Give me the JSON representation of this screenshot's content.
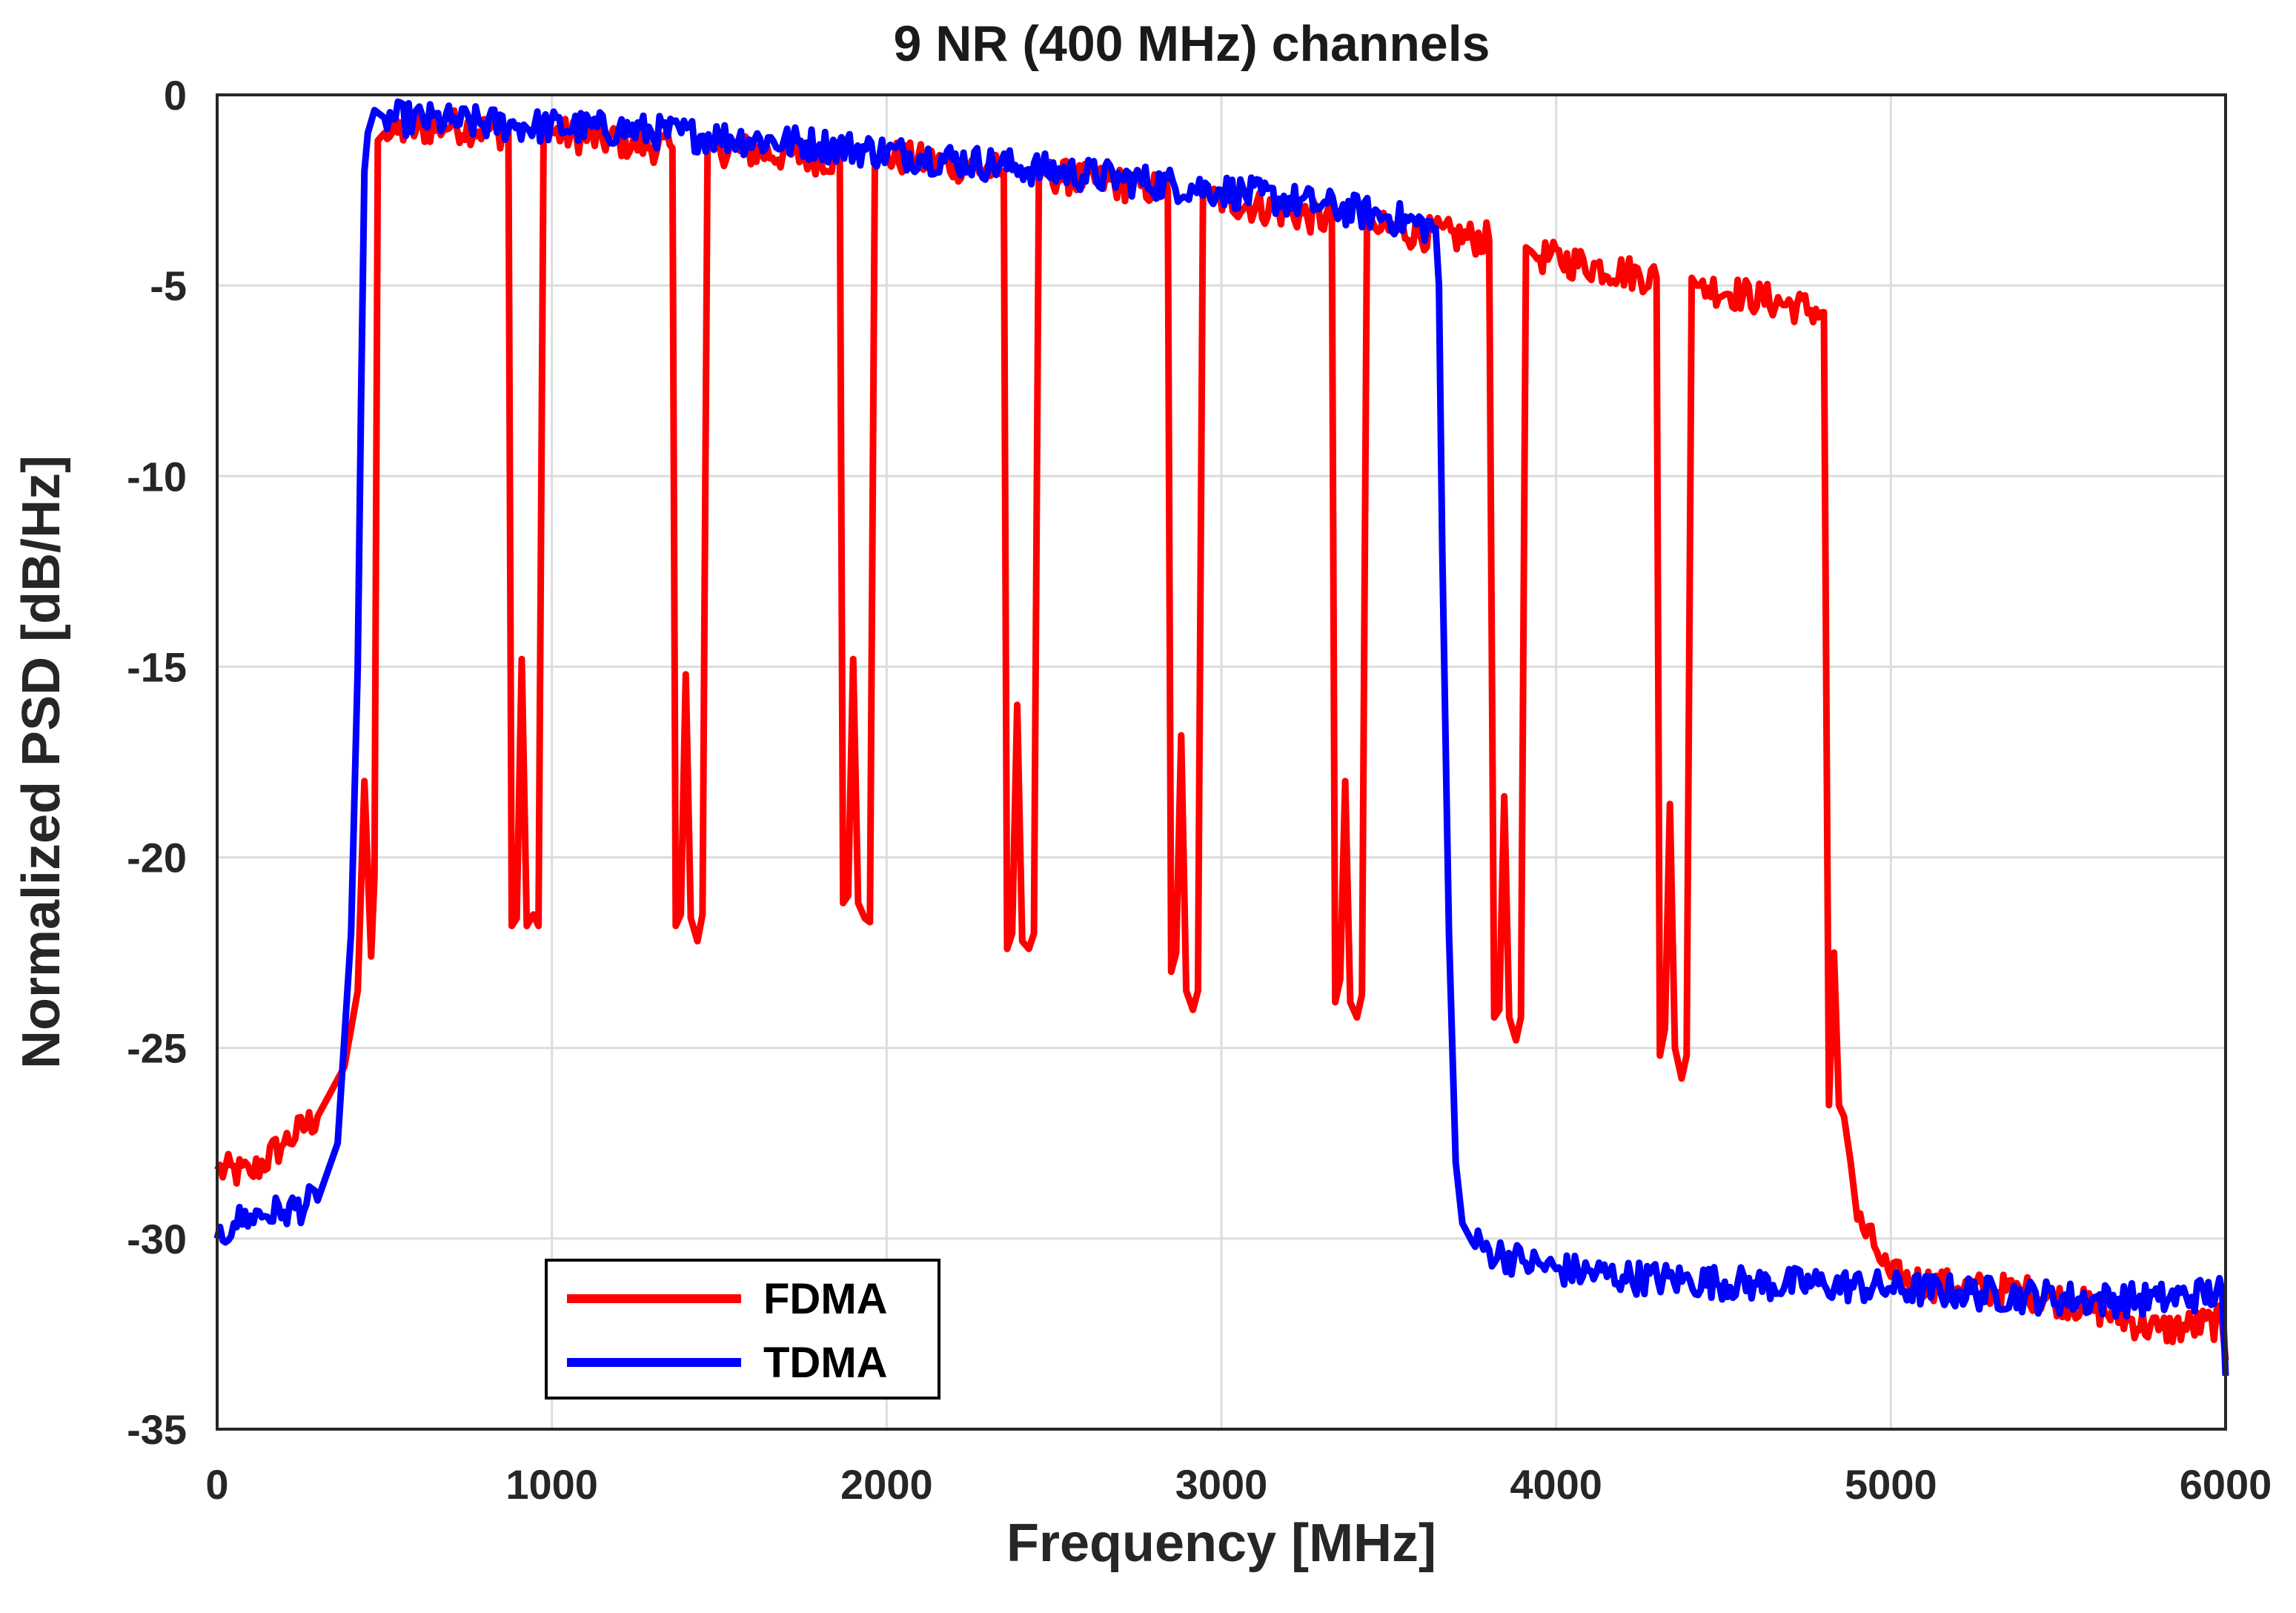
{
  "chart_data": {
    "type": "line",
    "title": "9 NR (400 MHz) channels",
    "xlabel": "Frequency [MHz]",
    "ylabel": "Normalized PSD [dB/Hz]",
    "xlim": [
      0,
      6000
    ],
    "ylim": [
      -35,
      0
    ],
    "xticks": [
      0,
      1000,
      2000,
      3000,
      4000,
      5000,
      6000
    ],
    "xtick_labels": [
      "0",
      "1000",
      "2000",
      "3000",
      "4000",
      "5000",
      "6000"
    ],
    "yticks": [
      0,
      -5,
      -10,
      -15,
      -20,
      -25,
      -30,
      -35
    ],
    "ytick_labels": [
      "0",
      "-5",
      "-10",
      "-15",
      "-20",
      "-25",
      "-30",
      "-35"
    ],
    "grid": true,
    "legend_position": "bottom-left",
    "series": [
      {
        "name": "FDMA",
        "color": "#ff0000",
        "x": [
          0,
          100,
          200,
          300,
          380,
          420,
          440,
          460,
          470,
          480,
          500,
          700,
          870,
          880,
          895,
          910,
          925,
          945,
          960,
          975,
          990,
          1000,
          1360,
          1370,
          1385,
          1400,
          1415,
          1435,
          1450,
          1465,
          1480,
          1490,
          1860,
          1870,
          1885,
          1900,
          1915,
          1935,
          1950,
          1965,
          1980,
          1990,
          2350,
          2360,
          2375,
          2390,
          2405,
          2425,
          2440,
          2455,
          2470,
          2480,
          2840,
          2850,
          2865,
          2880,
          2895,
          2915,
          2930,
          2945,
          2960,
          2970,
          3330,
          3340,
          3355,
          3370,
          3385,
          3405,
          3420,
          3435,
          3450,
          3460,
          3800,
          3815,
          3830,
          3845,
          3860,
          3880,
          3895,
          3910,
          3925,
          3935,
          4300,
          4310,
          4325,
          4340,
          4355,
          4375,
          4390,
          4405,
          4420,
          4430,
          4800,
          4815,
          4830,
          4845,
          4860,
          4880,
          4900,
          4950,
          5000,
          5200,
          5400,
          5600,
          5800,
          5990,
          6000
        ],
        "y": [
          -28.2,
          -28.3,
          -27.5,
          -26.8,
          -25.5,
          -23.5,
          -18.0,
          -22.6,
          -20.5,
          -1.2,
          -1.0,
          -0.8,
          -1.0,
          -21.8,
          -21.6,
          -14.8,
          -21.8,
          -21.5,
          -21.8,
          -1.2,
          -1.0,
          -1.0,
          -1.4,
          -21.8,
          -21.5,
          -15.2,
          -21.6,
          -22.2,
          -21.5,
          -1.4,
          -1.3,
          -1.4,
          -1.7,
          -21.2,
          -21.0,
          -14.8,
          -21.2,
          -21.6,
          -21.7,
          -1.7,
          -1.6,
          -1.6,
          -2.0,
          -22.4,
          -22.0,
          -16.0,
          -22.2,
          -22.4,
          -22.0,
          -2.0,
          -2.0,
          -2.1,
          -2.5,
          -23.0,
          -22.5,
          -16.8,
          -23.5,
          -24.0,
          -23.5,
          -2.6,
          -2.6,
          -2.7,
          -3.3,
          -23.8,
          -23.2,
          -18.0,
          -23.8,
          -24.2,
          -23.6,
          -3.3,
          -3.3,
          -3.5,
          -3.8,
          -24.2,
          -24.0,
          -18.4,
          -24.2,
          -24.8,
          -24.2,
          -4.0,
          -4.1,
          -4.2,
          -4.8,
          -25.2,
          -24.5,
          -18.6,
          -25.0,
          -25.8,
          -25.2,
          -4.8,
          -5.0,
          -5.0,
          -5.7,
          -26.5,
          -22.5,
          -26.5,
          -26.8,
          -28.0,
          -29.5,
          -30.2,
          -31.0,
          -31.3,
          -31.4,
          -31.8,
          -32.4,
          -32.2,
          -33.2
        ]
      },
      {
        "name": "TDMA",
        "color": "#0000ff",
        "x": [
          0,
          50,
          100,
          200,
          300,
          360,
          400,
          420,
          430,
          440,
          450,
          470,
          500,
          700,
          900,
          1200,
          1500,
          1800,
          2100,
          2400,
          2700,
          3000,
          3300,
          3500,
          3640,
          3650,
          3660,
          3680,
          3700,
          3720,
          3750,
          3800,
          3900,
          4000,
          4200,
          4400,
          4600,
          4800,
          5000,
          5200,
          5400,
          5600,
          5800,
          5990,
          6000
        ],
        "y": [
          -30.0,
          -29.6,
          -29.4,
          -29.3,
          -29.0,
          -27.5,
          -22.0,
          -15.0,
          -8.0,
          -2.0,
          -1.0,
          -0.4,
          -0.6,
          -0.7,
          -0.8,
          -0.9,
          -1.1,
          -1.3,
          -1.6,
          -1.9,
          -2.2,
          -2.5,
          -2.9,
          -3.2,
          -3.5,
          -5.0,
          -12.0,
          -22.0,
          -28.0,
          -29.6,
          -30.1,
          -30.3,
          -30.6,
          -30.8,
          -31.0,
          -31.1,
          -31.2,
          -31.2,
          -31.3,
          -31.4,
          -31.5,
          -31.6,
          -31.6,
          -31.4,
          -33.6
        ]
      }
    ]
  }
}
